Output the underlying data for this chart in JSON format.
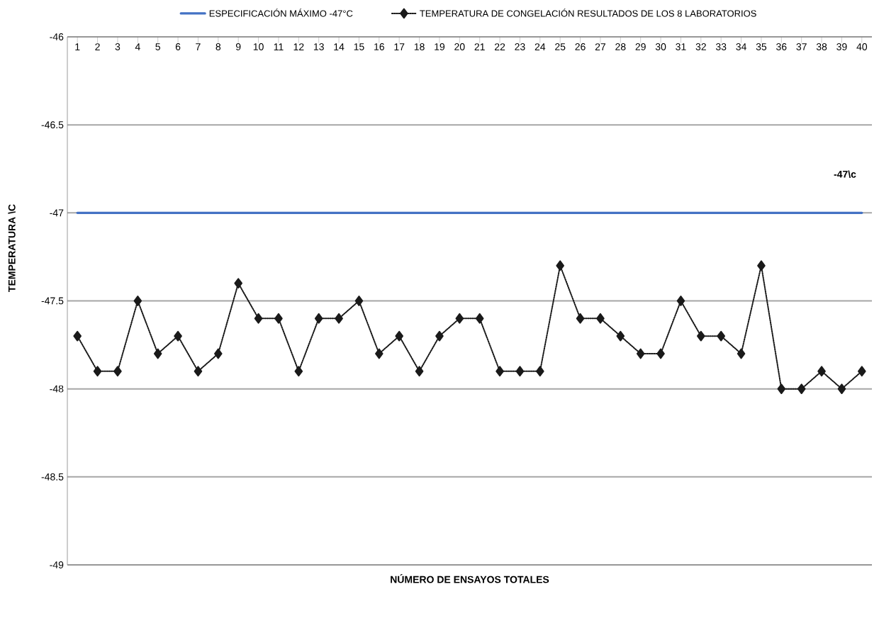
{
  "chart_data": {
    "type": "line",
    "xlabel": "NÚMERO DE ENSAYOS TOTALES",
    "ylabel": "TEMPERATURA \\C",
    "categories": [
      "1",
      "2",
      "3",
      "4",
      "5",
      "6",
      "7",
      "8",
      "9",
      "10",
      "11",
      "12",
      "13",
      "14",
      "15",
      "16",
      "17",
      "18",
      "19",
      "20",
      "21",
      "22",
      "23",
      "24",
      "25",
      "26",
      "27",
      "28",
      "29",
      "30",
      "31",
      "32",
      "33",
      "34",
      "35",
      "36",
      "37",
      "38",
      "39",
      "40"
    ],
    "series": [
      {
        "name": "ESPECIFICACIÓN MÁXIMO -47°C",
        "color": "#4472c4",
        "line_style": "solid",
        "marker": "none",
        "values": [
          -47,
          -47,
          -47,
          -47,
          -47,
          -47,
          -47,
          -47,
          -47,
          -47,
          -47,
          -47,
          -47,
          -47,
          -47,
          -47,
          -47,
          -47,
          -47,
          -47,
          -47,
          -47,
          -47,
          -47,
          -47,
          -47,
          -47,
          -47,
          -47,
          -47,
          -47,
          -47,
          -47,
          -47,
          -47,
          -47,
          -47,
          -47,
          -47,
          -47
        ]
      },
      {
        "name": "TEMPERATURA DE CONGELACIÓN RESULTADOS DE LOS 8 LABORATORIOS",
        "color": "#1a1a1a",
        "line_style": "dotted",
        "marker": "diamond",
        "values": [
          -47.7,
          -47.9,
          -47.9,
          -47.5,
          -47.8,
          -47.7,
          -47.9,
          -47.8,
          -47.4,
          -47.6,
          -47.6,
          -47.9,
          -47.6,
          -47.6,
          -47.5,
          -47.8,
          -47.7,
          -47.9,
          -47.7,
          -47.6,
          -47.6,
          -47.9,
          -47.9,
          -47.9,
          -47.3,
          -47.6,
          -47.6,
          -47.7,
          -47.8,
          -47.8,
          -47.5,
          -47.7,
          -47.7,
          -47.8,
          -47.3,
          -48,
          -48,
          -47.9,
          -48,
          -47.9
        ]
      }
    ],
    "ylim": [
      -49,
      -46
    ],
    "yticks": [
      -49,
      -48.5,
      -48,
      -47.5,
      -47,
      -46.5,
      -46
    ],
    "grid": "y",
    "legend": "top",
    "annotations": [
      "-47\\c"
    ]
  }
}
